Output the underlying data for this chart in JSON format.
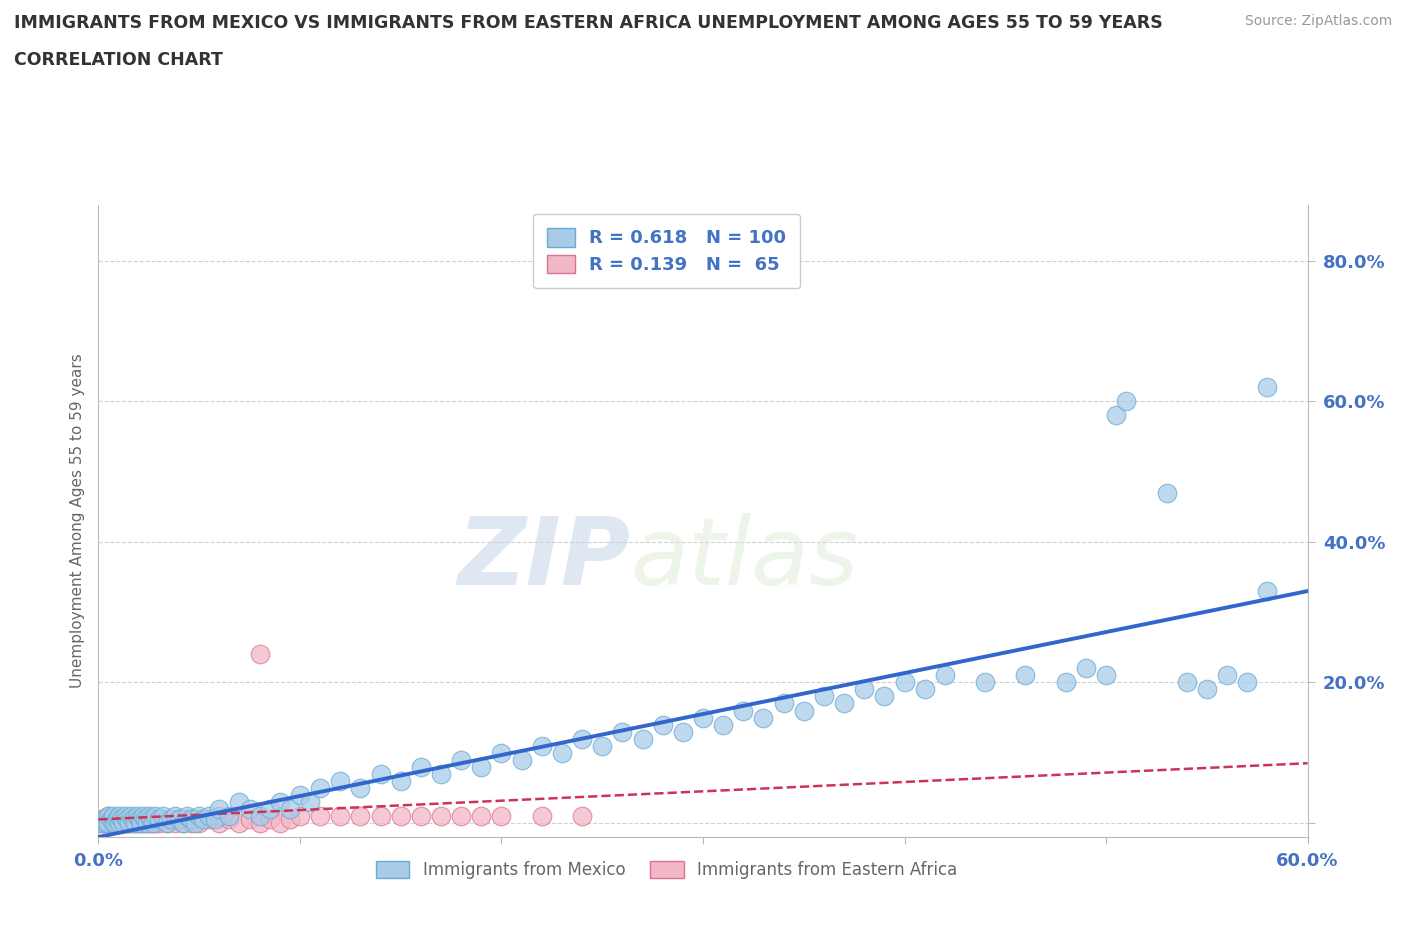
{
  "title_line1": "IMMIGRANTS FROM MEXICO VS IMMIGRANTS FROM EASTERN AFRICA UNEMPLOYMENT AMONG AGES 55 TO 59 YEARS",
  "title_line2": "CORRELATION CHART",
  "source_text": "Source: ZipAtlas.com",
  "ylabel": "Unemployment Among Ages 55 to 59 years",
  "xlim": [
    0.0,
    0.6
  ],
  "ylim": [
    -0.02,
    0.88
  ],
  "mexico_color": "#a8cce8",
  "mexico_edge_color": "#6aaad4",
  "ea_color": "#f2b8c6",
  "ea_edge_color": "#e07090",
  "trend_mexico_color": "#3366cc",
  "trend_ea_color": "#cc3355",
  "R_mexico": 0.618,
  "N_mexico": 100,
  "R_ea": 0.139,
  "N_ea": 65,
  "watermark_zip": "ZIP",
  "watermark_atlas": "atlas",
  "background_color": "#ffffff",
  "grid_color": "#cccccc",
  "tick_color": "#4472c4",
  "legend_label_mexico": "Immigrants from Mexico",
  "legend_label_ea": "Immigrants from Eastern Africa",
  "mexico_x": [
    0.002,
    0.003,
    0.004,
    0.005,
    0.005,
    0.006,
    0.007,
    0.007,
    0.008,
    0.009,
    0.01,
    0.01,
    0.011,
    0.012,
    0.013,
    0.014,
    0.015,
    0.016,
    0.017,
    0.018,
    0.019,
    0.02,
    0.021,
    0.022,
    0.023,
    0.024,
    0.025,
    0.026,
    0.027,
    0.028,
    0.03,
    0.032,
    0.034,
    0.036,
    0.038,
    0.04,
    0.042,
    0.044,
    0.046,
    0.048,
    0.05,
    0.052,
    0.055,
    0.058,
    0.06,
    0.065,
    0.07,
    0.075,
    0.08,
    0.085,
    0.09,
    0.095,
    0.1,
    0.105,
    0.11,
    0.12,
    0.13,
    0.14,
    0.15,
    0.16,
    0.17,
    0.18,
    0.19,
    0.2,
    0.21,
    0.22,
    0.23,
    0.24,
    0.25,
    0.26,
    0.27,
    0.28,
    0.29,
    0.3,
    0.31,
    0.32,
    0.33,
    0.34,
    0.35,
    0.36,
    0.37,
    0.38,
    0.39,
    0.4,
    0.41,
    0.42,
    0.44,
    0.46,
    0.48,
    0.49,
    0.5,
    0.505,
    0.51,
    0.53,
    0.54,
    0.55,
    0.56,
    0.57,
    0.58,
    0.58
  ],
  "mexico_y": [
    0.0,
    0.005,
    0.0,
    0.01,
    0.0,
    0.005,
    0.0,
    0.01,
    0.0,
    0.005,
    0.0,
    0.01,
    0.005,
    0.0,
    0.01,
    0.005,
    0.0,
    0.01,
    0.005,
    0.0,
    0.01,
    0.005,
    0.0,
    0.01,
    0.005,
    0.0,
    0.01,
    0.005,
    0.0,
    0.01,
    0.005,
    0.01,
    0.0,
    0.005,
    0.01,
    0.005,
    0.0,
    0.01,
    0.005,
    0.0,
    0.01,
    0.005,
    0.01,
    0.005,
    0.02,
    0.01,
    0.03,
    0.02,
    0.01,
    0.02,
    0.03,
    0.02,
    0.04,
    0.03,
    0.05,
    0.06,
    0.05,
    0.07,
    0.06,
    0.08,
    0.07,
    0.09,
    0.08,
    0.1,
    0.09,
    0.11,
    0.1,
    0.12,
    0.11,
    0.13,
    0.12,
    0.14,
    0.13,
    0.15,
    0.14,
    0.16,
    0.15,
    0.17,
    0.16,
    0.18,
    0.17,
    0.19,
    0.18,
    0.2,
    0.19,
    0.21,
    0.2,
    0.21,
    0.2,
    0.22,
    0.21,
    0.58,
    0.6,
    0.47,
    0.2,
    0.19,
    0.21,
    0.2,
    0.33,
    0.62
  ],
  "ea_x": [
    0.001,
    0.002,
    0.003,
    0.004,
    0.005,
    0.005,
    0.006,
    0.007,
    0.008,
    0.009,
    0.01,
    0.011,
    0.012,
    0.013,
    0.014,
    0.015,
    0.016,
    0.017,
    0.018,
    0.019,
    0.02,
    0.021,
    0.022,
    0.023,
    0.024,
    0.025,
    0.026,
    0.027,
    0.028,
    0.029,
    0.03,
    0.032,
    0.034,
    0.036,
    0.038,
    0.04,
    0.042,
    0.044,
    0.046,
    0.048,
    0.05,
    0.055,
    0.06,
    0.065,
    0.07,
    0.075,
    0.08,
    0.085,
    0.09,
    0.095,
    0.1,
    0.11,
    0.12,
    0.13,
    0.14,
    0.15,
    0.16,
    0.17,
    0.18,
    0.19,
    0.2,
    0.22,
    0.24,
    0.08,
    0.06
  ],
  "ea_y": [
    0.0,
    0.005,
    0.0,
    0.005,
    0.0,
    0.01,
    0.0,
    0.005,
    0.0,
    0.005,
    0.0,
    0.005,
    0.0,
    0.005,
    0.0,
    0.005,
    0.0,
    0.005,
    0.0,
    0.005,
    0.0,
    0.005,
    0.0,
    0.005,
    0.0,
    0.005,
    0.0,
    0.005,
    0.0,
    0.005,
    0.0,
    0.005,
    0.0,
    0.005,
    0.0,
    0.005,
    0.0,
    0.005,
    0.0,
    0.005,
    0.0,
    0.005,
    0.0,
    0.005,
    0.0,
    0.005,
    0.0,
    0.005,
    0.0,
    0.005,
    0.01,
    0.01,
    0.01,
    0.01,
    0.01,
    0.01,
    0.01,
    0.01,
    0.01,
    0.01,
    0.01,
    0.01,
    0.01,
    0.24,
    0.01
  ],
  "trend_mexico_x0": 0.0,
  "trend_mexico_x1": 0.6,
  "trend_mexico_y0": -0.02,
  "trend_mexico_y1": 0.33,
  "trend_ea_x0": 0.0,
  "trend_ea_x1": 0.6,
  "trend_ea_y0": 0.005,
  "trend_ea_y1": 0.085
}
